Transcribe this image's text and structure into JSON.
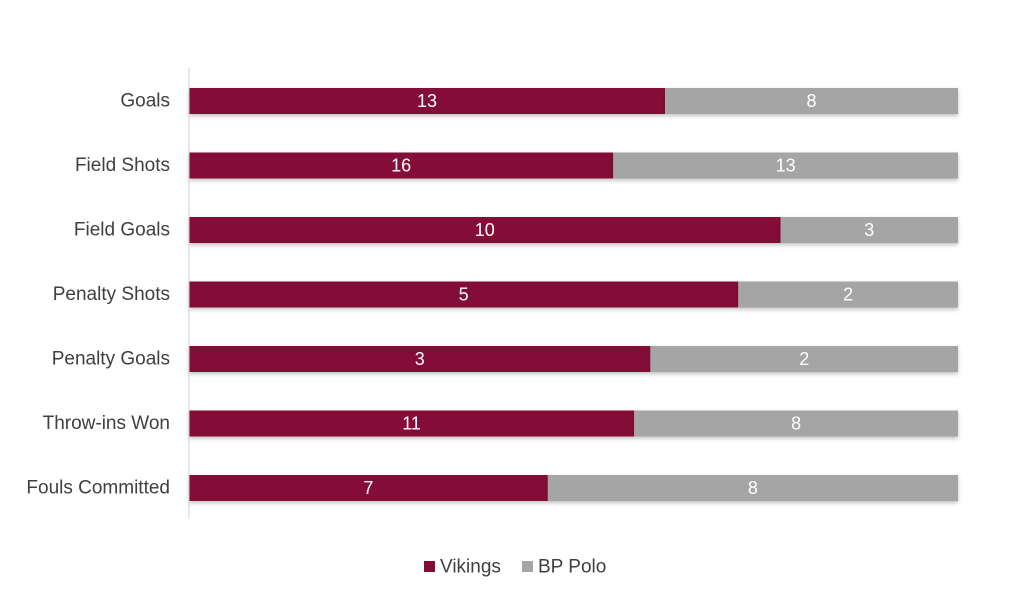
{
  "chart_data": {
    "type": "bar",
    "orientation": "horizontal",
    "stacked": "percent",
    "categories": [
      "Goals",
      "Field Shots",
      "Field Goals",
      "Penalty Shots",
      "Penalty Goals",
      "Throw-ins Won",
      "Fouls Committed"
    ],
    "series": [
      {
        "name": "Vikings",
        "color": "#840A37",
        "values": [
          13,
          16,
          10,
          5,
          3,
          11,
          7
        ]
      },
      {
        "name": "BP Polo",
        "color": "#A5A5A5",
        "values": [
          8,
          13,
          3,
          2,
          2,
          8,
          8
        ]
      }
    ],
    "title": "",
    "xlabel": "",
    "ylabel": "",
    "grid": false,
    "legend": "bottom"
  }
}
